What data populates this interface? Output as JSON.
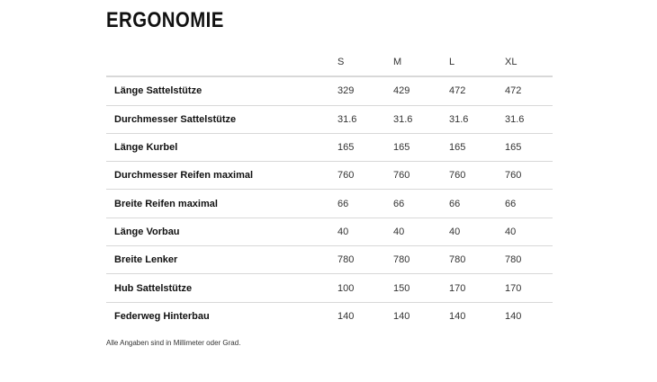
{
  "title": "ERGONOMIE",
  "columns": [
    "S",
    "M",
    "L",
    "XL"
  ],
  "rows": [
    {
      "label": "Länge Sattelstütze",
      "values": [
        "329",
        "429",
        "472",
        "472"
      ]
    },
    {
      "label": "Durchmesser Sattelstütze",
      "values": [
        "31.6",
        "31.6",
        "31.6",
        "31.6"
      ]
    },
    {
      "label": "Länge Kurbel",
      "values": [
        "165",
        "165",
        "165",
        "165"
      ]
    },
    {
      "label": "Durchmesser Reifen maximal",
      "values": [
        "760",
        "760",
        "760",
        "760"
      ]
    },
    {
      "label": "Breite Reifen maximal",
      "values": [
        "66",
        "66",
        "66",
        "66"
      ]
    },
    {
      "label": "Länge Vorbau",
      "values": [
        "40",
        "40",
        "40",
        "40"
      ]
    },
    {
      "label": "Breite Lenker",
      "values": [
        "780",
        "780",
        "780",
        "780"
      ]
    },
    {
      "label": "Hub Sattelstütze",
      "values": [
        "100",
        "150",
        "170",
        "170"
      ]
    },
    {
      "label": "Federweg Hinterbau",
      "values": [
        "140",
        "140",
        "140",
        "140"
      ]
    }
  ],
  "footnote": "Alle Angaben sind in Millimeter oder Grad."
}
